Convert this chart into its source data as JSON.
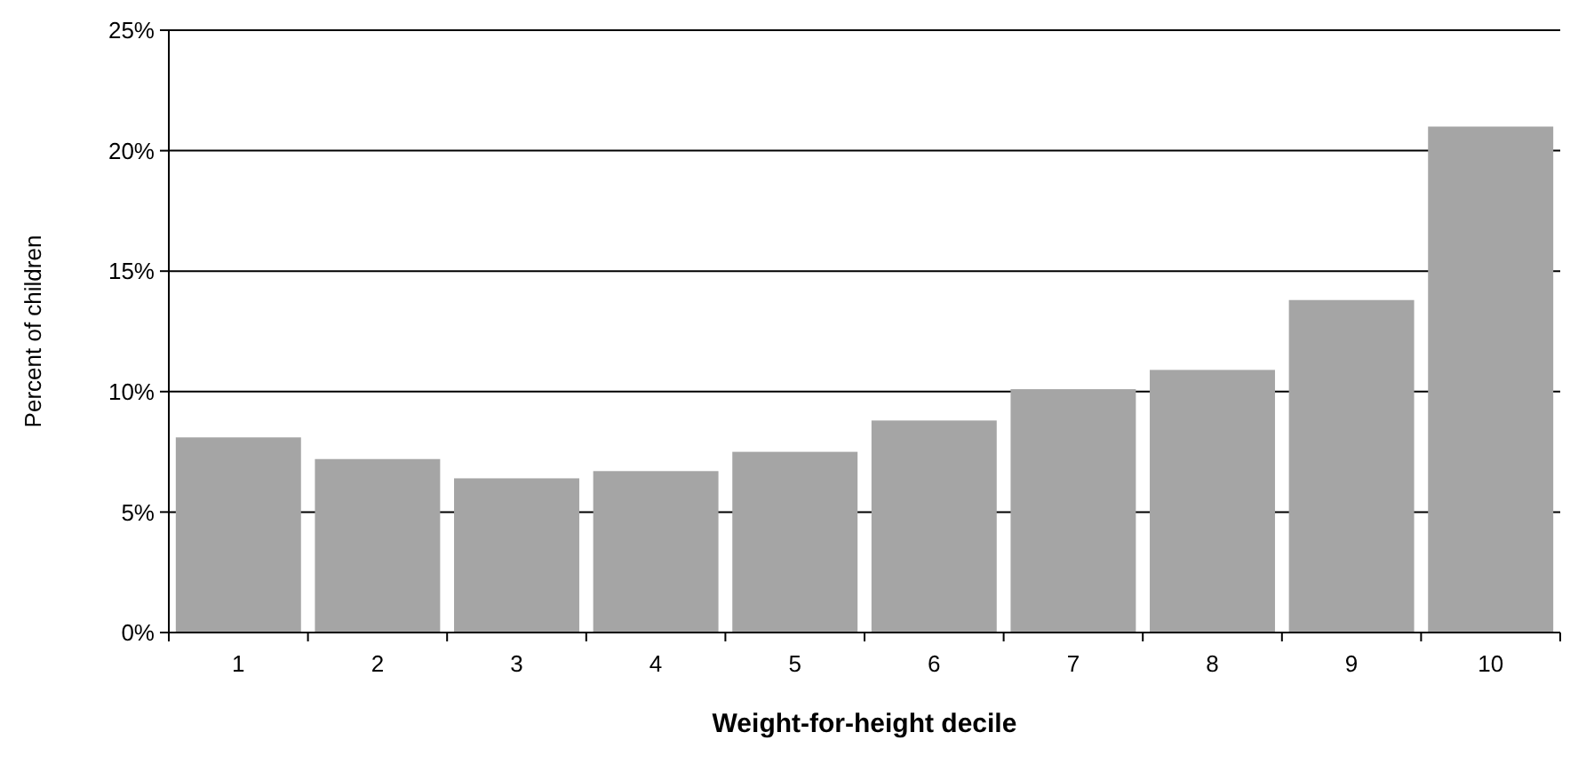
{
  "chart_data": {
    "type": "bar",
    "xlabel": "Weight-for-height decile",
    "ylabel": "Percent of children",
    "categories": [
      "1",
      "2",
      "3",
      "4",
      "5",
      "6",
      "7",
      "8",
      "9",
      "10"
    ],
    "values": [
      8.1,
      7.2,
      6.4,
      6.7,
      7.5,
      8.8,
      10.1,
      10.9,
      13.8,
      21.0
    ],
    "color": "#a5a5a5",
    "ylim": [
      0,
      25
    ],
    "yticks": [
      {
        "value": 0,
        "label": "0%"
      },
      {
        "value": 5,
        "label": "5%"
      },
      {
        "value": 10,
        "label": "10%"
      },
      {
        "value": 15,
        "label": "15%"
      },
      {
        "value": 20,
        "label": "20%"
      },
      {
        "value": 25,
        "label": "25%"
      }
    ],
    "grid": "y"
  }
}
